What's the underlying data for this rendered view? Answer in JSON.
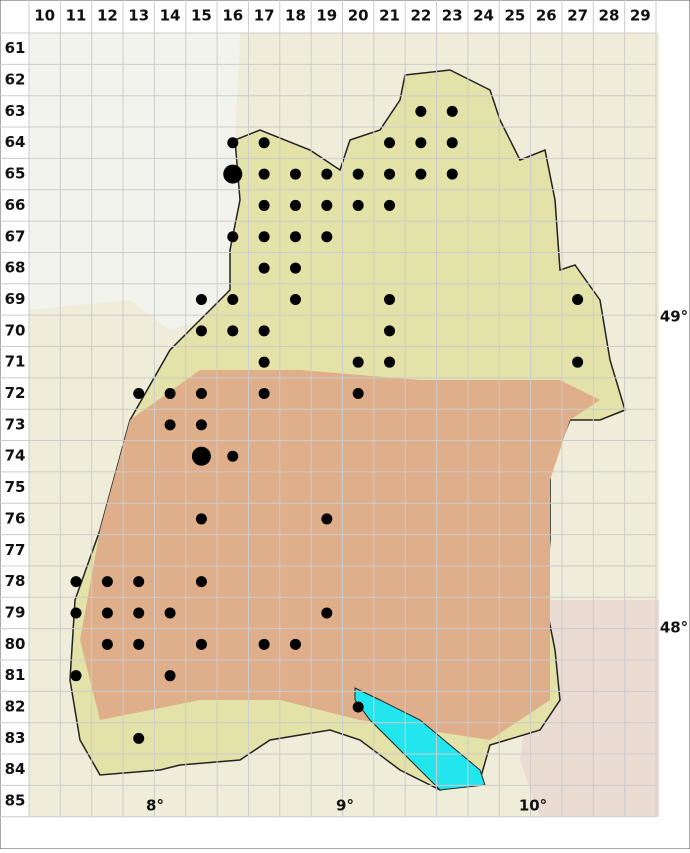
{
  "columns": [
    10,
    11,
    12,
    13,
    14,
    15,
    16,
    17,
    18,
    19,
    20,
    21,
    22,
    23,
    24,
    25,
    26,
    27,
    28,
    29
  ],
  "rows": [
    61,
    62,
    63,
    64,
    65,
    66,
    67,
    68,
    69,
    70,
    71,
    72,
    73,
    74,
    75,
    76,
    77,
    78,
    79,
    80,
    81,
    82,
    83,
    84,
    85
  ],
  "longitude_labels": [
    "8°",
    "9°",
    "10°"
  ],
  "latitude_labels": [
    "49°",
    "48°"
  ],
  "points": [
    {
      "col": 22,
      "row": 63
    },
    {
      "col": 23,
      "row": 63
    },
    {
      "col": 16,
      "row": 64
    },
    {
      "col": 17,
      "row": 64
    },
    {
      "col": 21,
      "row": 64
    },
    {
      "col": 22,
      "row": 64
    },
    {
      "col": 23,
      "row": 64
    },
    {
      "col": 16,
      "row": 65,
      "size": "large"
    },
    {
      "col": 17,
      "row": 65
    },
    {
      "col": 18,
      "row": 65
    },
    {
      "col": 19,
      "row": 65
    },
    {
      "col": 20,
      "row": 65
    },
    {
      "col": 21,
      "row": 65
    },
    {
      "col": 22,
      "row": 65
    },
    {
      "col": 23,
      "row": 65
    },
    {
      "col": 17,
      "row": 66
    },
    {
      "col": 18,
      "row": 66
    },
    {
      "col": 19,
      "row": 66
    },
    {
      "col": 20,
      "row": 66
    },
    {
      "col": 21,
      "row": 66
    },
    {
      "col": 16,
      "row": 67
    },
    {
      "col": 17,
      "row": 67
    },
    {
      "col": 18,
      "row": 67
    },
    {
      "col": 19,
      "row": 67
    },
    {
      "col": 17,
      "row": 68
    },
    {
      "col": 18,
      "row": 68
    },
    {
      "col": 15,
      "row": 69
    },
    {
      "col": 16,
      "row": 69
    },
    {
      "col": 18,
      "row": 69
    },
    {
      "col": 21,
      "row": 69
    },
    {
      "col": 27,
      "row": 69
    },
    {
      "col": 15,
      "row": 70
    },
    {
      "col": 16,
      "row": 70
    },
    {
      "col": 17,
      "row": 70
    },
    {
      "col": 21,
      "row": 70
    },
    {
      "col": 17,
      "row": 71
    },
    {
      "col": 20,
      "row": 71
    },
    {
      "col": 21,
      "row": 71
    },
    {
      "col": 27,
      "row": 71
    },
    {
      "col": 13,
      "row": 72
    },
    {
      "col": 14,
      "row": 72
    },
    {
      "col": 15,
      "row": 72
    },
    {
      "col": 17,
      "row": 72
    },
    {
      "col": 20,
      "row": 72
    },
    {
      "col": 14,
      "row": 73
    },
    {
      "col": 15,
      "row": 73
    },
    {
      "col": 15,
      "row": 74,
      "size": "large"
    },
    {
      "col": 16,
      "row": 74
    },
    {
      "col": 15,
      "row": 76
    },
    {
      "col": 19,
      "row": 76
    },
    {
      "col": 11,
      "row": 78
    },
    {
      "col": 12,
      "row": 78
    },
    {
      "col": 13,
      "row": 78
    },
    {
      "col": 15,
      "row": 78
    },
    {
      "col": 11,
      "row": 79
    },
    {
      "col": 12,
      "row": 79
    },
    {
      "col": 13,
      "row": 79
    },
    {
      "col": 14,
      "row": 79
    },
    {
      "col": 19,
      "row": 79
    },
    {
      "col": 12,
      "row": 80
    },
    {
      "col": 13,
      "row": 80
    },
    {
      "col": 15,
      "row": 80
    },
    {
      "col": 17,
      "row": 80
    },
    {
      "col": 18,
      "row": 80
    },
    {
      "col": 11,
      "row": 81
    },
    {
      "col": 14,
      "row": 81
    },
    {
      "col": 20,
      "row": 82
    },
    {
      "col": 13,
      "row": 83
    }
  ]
}
